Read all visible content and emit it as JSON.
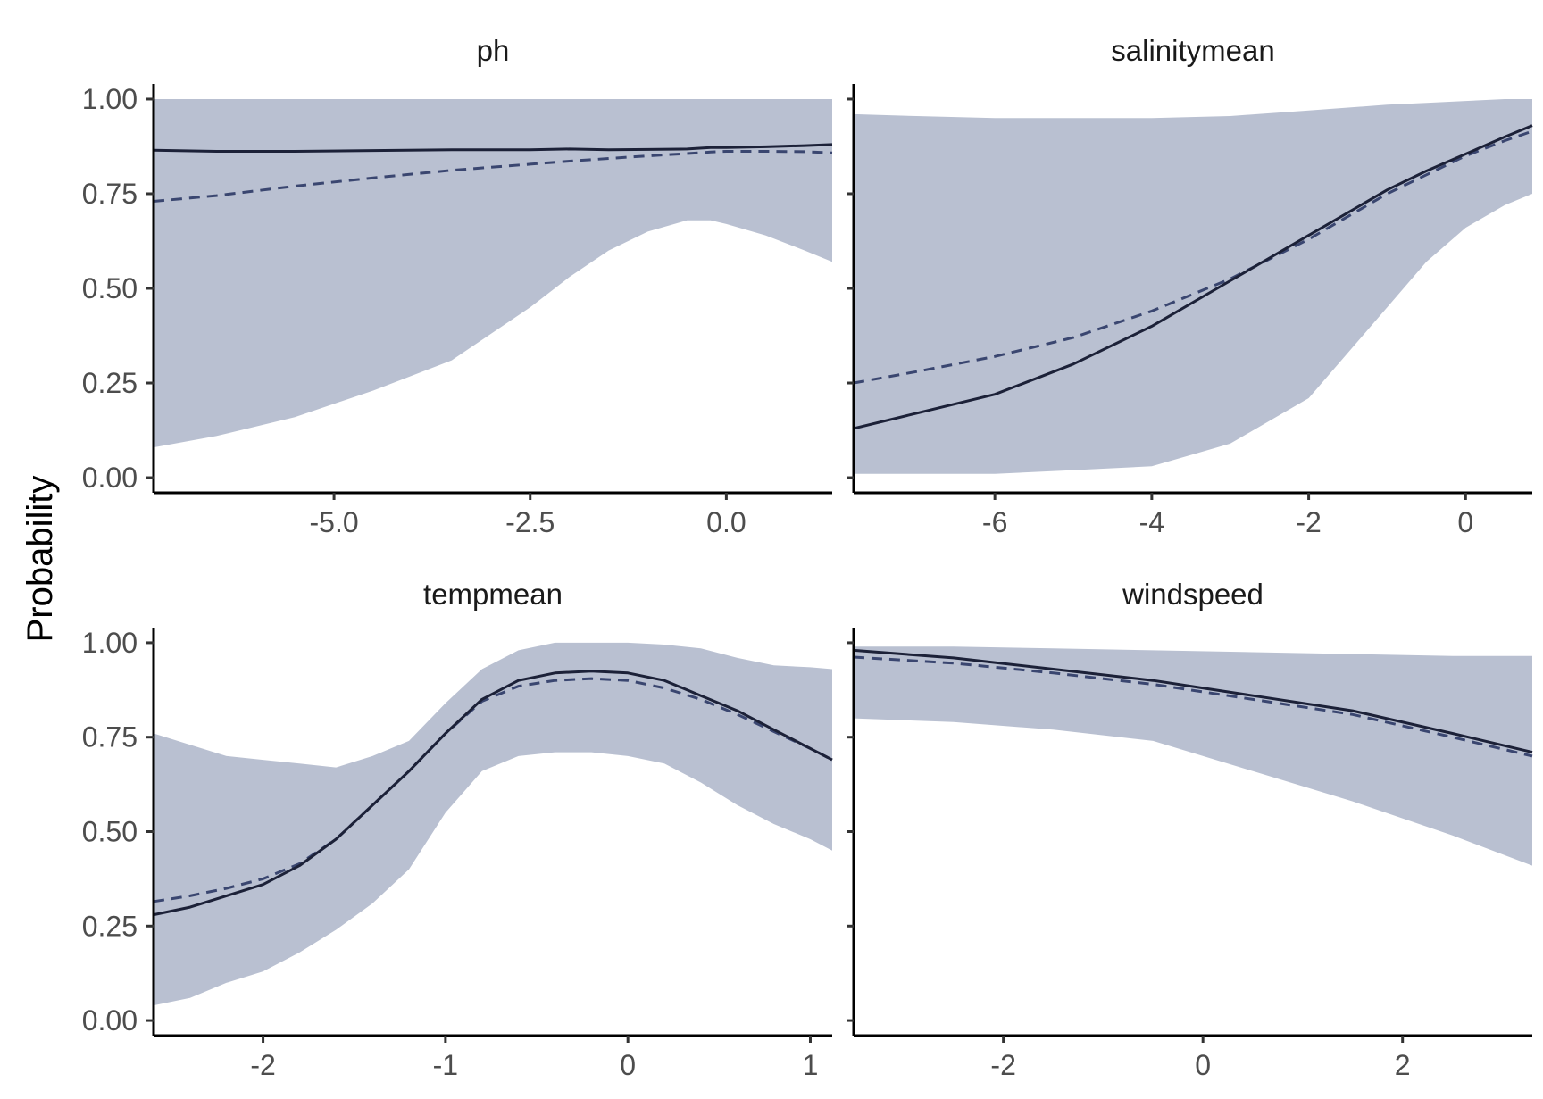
{
  "colors": {
    "band": "#b9c0d1",
    "solid_line": "#1c2138",
    "dashed_line": "#3a4670",
    "axis": "#000000",
    "tick_text": "#4d4d4d"
  },
  "chart_data": {
    "type": "line",
    "ylabel": "Probability",
    "y_ticks": [
      "0.00",
      "0.25",
      "0.50",
      "0.75",
      "1.00"
    ],
    "ylim": [
      -0.04,
      1.04
    ],
    "grid": false,
    "facets": [
      {
        "title": "ph",
        "xlim": [
          -7.3,
          1.35
        ],
        "x_ticks": [
          -5.0,
          -2.5,
          0.0
        ],
        "x_tick_labels": [
          "-5.0",
          "-2.5",
          "0.0"
        ],
        "x": [
          -7.3,
          -6.5,
          -5.5,
          -4.5,
          -3.5,
          -2.5,
          -2.0,
          -1.5,
          -1.0,
          -0.5,
          -0.2,
          0.0,
          0.5,
          1.0,
          1.35
        ],
        "band_lower": [
          0.08,
          0.11,
          0.16,
          0.23,
          0.31,
          0.45,
          0.53,
          0.6,
          0.65,
          0.68,
          0.68,
          0.67,
          0.64,
          0.6,
          0.57
        ],
        "band_upper": [
          1.0,
          1.0,
          1.0,
          1.0,
          1.0,
          1.0,
          1.0,
          1.0,
          1.0,
          1.0,
          1.0,
          1.0,
          1.0,
          1.0,
          1.0
        ],
        "series": [
          {
            "style": "solid",
            "values": [
              0.865,
              0.862,
              0.862,
              0.864,
              0.866,
              0.866,
              0.868,
              0.866,
              0.867,
              0.868,
              0.872,
              0.872,
              0.874,
              0.877,
              0.88
            ]
          },
          {
            "style": "dashed",
            "values": [
              0.73,
              0.745,
              0.77,
              0.792,
              0.812,
              0.828,
              0.836,
              0.843,
              0.85,
              0.856,
              0.86,
              0.862,
              0.862,
              0.861,
              0.858
            ]
          }
        ]
      },
      {
        "title": "salinitymean",
        "xlim": [
          -7.8,
          0.85
        ],
        "x_ticks": [
          -6,
          -4,
          -2,
          0
        ],
        "x_tick_labels": [
          "-6",
          "-4",
          "-2",
          "0"
        ],
        "x": [
          -7.8,
          -7.0,
          -6.0,
          -5.0,
          -4.0,
          -3.0,
          -2.0,
          -1.0,
          -0.5,
          0.0,
          0.5,
          0.85
        ],
        "band_lower": [
          0.01,
          0.01,
          0.01,
          0.02,
          0.03,
          0.09,
          0.21,
          0.45,
          0.57,
          0.66,
          0.72,
          0.75
        ],
        "band_upper": [
          0.96,
          0.955,
          0.95,
          0.95,
          0.95,
          0.955,
          0.97,
          0.985,
          0.99,
          0.995,
          1.0,
          1.0
        ],
        "series": [
          {
            "style": "solid",
            "values": [
              0.13,
              0.17,
              0.22,
              0.3,
              0.4,
              0.52,
              0.64,
              0.76,
              0.81,
              0.855,
              0.9,
              0.93
            ]
          },
          {
            "style": "dashed",
            "values": [
              0.25,
              0.28,
              0.32,
              0.37,
              0.44,
              0.525,
              0.63,
              0.75,
              0.8,
              0.85,
              0.89,
              0.915
            ]
          }
        ]
      },
      {
        "title": "tempmean",
        "xlim": [
          -2.6,
          1.12
        ],
        "x_ticks": [
          -2,
          -1,
          0,
          1
        ],
        "x_tick_labels": [
          "-2",
          "-1",
          "0",
          "1"
        ],
        "x": [
          -2.6,
          -2.4,
          -2.2,
          -2.0,
          -1.8,
          -1.6,
          -1.4,
          -1.2,
          -1.0,
          -0.8,
          -0.6,
          -0.4,
          -0.2,
          0.0,
          0.2,
          0.4,
          0.6,
          0.8,
          1.0,
          1.12
        ],
        "band_lower": [
          0.04,
          0.06,
          0.1,
          0.13,
          0.18,
          0.24,
          0.31,
          0.4,
          0.55,
          0.66,
          0.7,
          0.71,
          0.71,
          0.7,
          0.68,
          0.63,
          0.57,
          0.52,
          0.48,
          0.45
        ],
        "band_upper": [
          0.76,
          0.73,
          0.7,
          0.69,
          0.68,
          0.67,
          0.7,
          0.74,
          0.84,
          0.93,
          0.98,
          1.0,
          1.0,
          1.0,
          0.995,
          0.985,
          0.96,
          0.94,
          0.935,
          0.93
        ],
        "series": [
          {
            "style": "solid",
            "values": [
              0.28,
              0.3,
              0.33,
              0.36,
              0.41,
              0.48,
              0.57,
              0.66,
              0.76,
              0.85,
              0.9,
              0.92,
              0.925,
              0.92,
              0.9,
              0.86,
              0.82,
              0.77,
              0.72,
              0.69
            ]
          },
          {
            "style": "dashed",
            "values": [
              0.315,
              0.33,
              0.35,
              0.375,
              0.415,
              0.48,
              0.57,
              0.66,
              0.76,
              0.845,
              0.885,
              0.9,
              0.905,
              0.9,
              0.88,
              0.85,
              0.81,
              0.765,
              0.72,
              0.69
            ]
          }
        ]
      },
      {
        "title": "windspeed",
        "xlim": [
          -3.5,
          3.3
        ],
        "x_ticks": [
          -2,
          0,
          2
        ],
        "x_tick_labels": [
          "-2",
          "0",
          "2"
        ],
        "x": [
          -3.5,
          -2.5,
          -1.5,
          -0.5,
          0.5,
          1.5,
          2.5,
          3.3
        ],
        "band_lower": [
          0.8,
          0.79,
          0.77,
          0.74,
          0.66,
          0.58,
          0.49,
          0.41
        ],
        "band_upper": [
          0.99,
          0.99,
          0.985,
          0.98,
          0.975,
          0.97,
          0.965,
          0.965
        ],
        "series": [
          {
            "style": "solid",
            "values": [
              0.98,
              0.96,
              0.93,
              0.9,
              0.86,
              0.82,
              0.76,
              0.71
            ]
          },
          {
            "style": "dashed",
            "values": [
              0.962,
              0.946,
              0.92,
              0.89,
              0.85,
              0.81,
              0.75,
              0.7
            ]
          }
        ]
      }
    ]
  }
}
